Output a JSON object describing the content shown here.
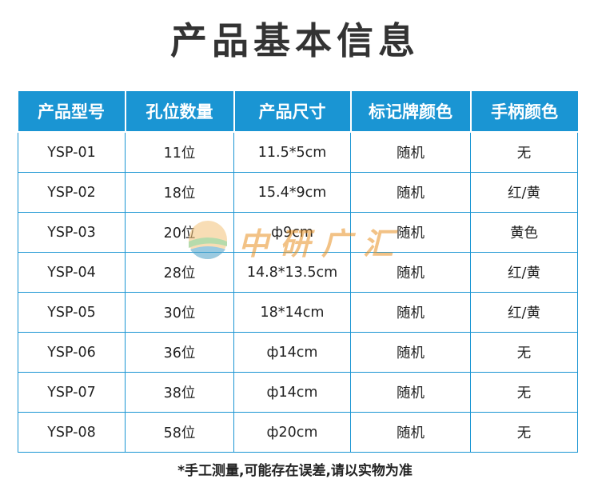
{
  "title": "产品基本信息",
  "table": {
    "headers": [
      "产品型号",
      "孔位数量",
      "产品尺寸",
      "标记牌颜色",
      "手柄颜色"
    ],
    "rows": [
      [
        "YSP-01",
        "11位",
        "11.5*5cm",
        "随机",
        "无"
      ],
      [
        "YSP-02",
        "18位",
        "15.4*9cm",
        "随机",
        "红/黄"
      ],
      [
        "YSP-03",
        "20位",
        "ф9cm",
        "随机",
        "黄色"
      ],
      [
        "YSP-04",
        "28位",
        "14.8*13.5cm",
        "随机",
        "红/黄"
      ],
      [
        "YSP-05",
        "30位",
        "18*14cm",
        "随机",
        "红/黄"
      ],
      [
        "YSP-06",
        "36位",
        "ф14cm",
        "随机",
        "无"
      ],
      [
        "YSP-07",
        "38位",
        "ф14cm",
        "随机",
        "无"
      ],
      [
        "YSP-08",
        "58位",
        "ф20cm",
        "随机",
        "无"
      ]
    ]
  },
  "note": "*手工测量,可能存在误差,请以实物为准",
  "watermark": {
    "text": "中研广汇",
    "color": "#e89224"
  },
  "colors": {
    "header_bg": "#1a95d3",
    "border": "#1a95d3",
    "title": "#333333"
  }
}
